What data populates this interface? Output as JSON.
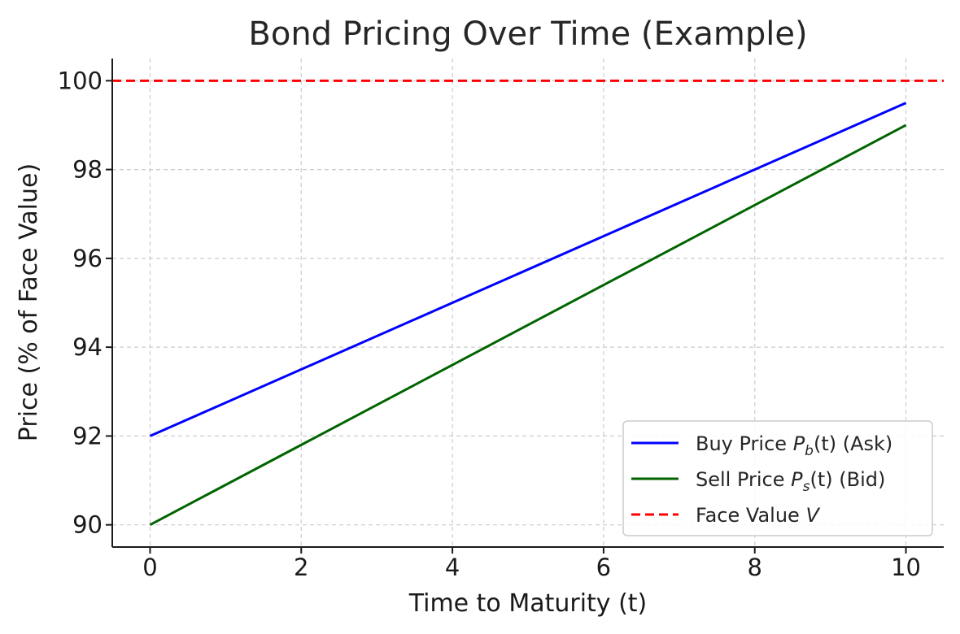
{
  "chart_data": {
    "type": "line",
    "title": "Bond Pricing Over Time (Example)",
    "xlabel": "Time to Maturity (t)",
    "ylabel": "Price (% of Face Value)",
    "xlim": [
      -0.5,
      10.5
    ],
    "ylim": [
      89.5,
      100.5
    ],
    "xticks": [
      0,
      2,
      4,
      6,
      8,
      10
    ],
    "yticks": [
      90,
      92,
      94,
      96,
      98,
      100
    ],
    "grid": true,
    "legend_position": "lower-right",
    "series": [
      {
        "name": "Buy Price P_b(t) (Ask)",
        "legend": {
          "pre": "Buy Price ",
          "var": "P",
          "sub": "b",
          "post": "(t) (Ask)"
        },
        "x": [
          0,
          10
        ],
        "y": [
          92,
          99.5
        ],
        "color": "#0000ff",
        "style": "solid"
      },
      {
        "name": "Sell Price P_s(t) (Bid)",
        "legend": {
          "pre": "Sell Price ",
          "var": "P",
          "sub": "s",
          "post": "(t) (Bid)"
        },
        "x": [
          0,
          10
        ],
        "y": [
          90,
          99
        ],
        "color": "#006400",
        "style": "solid"
      },
      {
        "name": "Face Value V",
        "legend": {
          "pre": "Face Value ",
          "var": "V",
          "sub": "",
          "post": ""
        },
        "hline": 100,
        "color": "#ff0000",
        "style": "dashed"
      }
    ]
  }
}
